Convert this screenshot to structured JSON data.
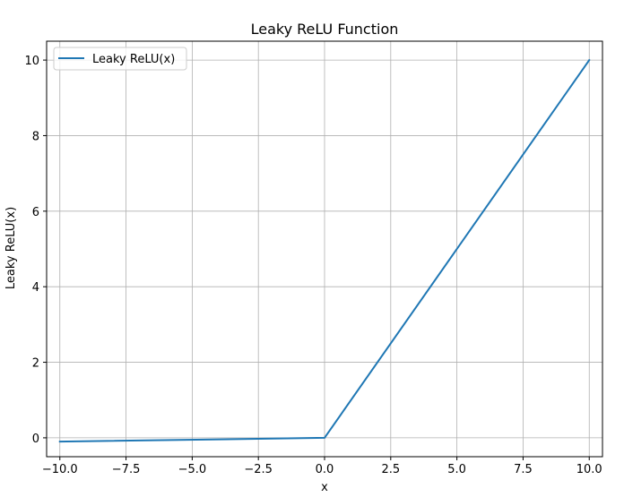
{
  "chart_data": {
    "type": "line",
    "title": "Leaky ReLU Function",
    "xlabel": "x",
    "ylabel": "Leaky ReLU(x)",
    "xlim": [
      -10.5,
      10.5
    ],
    "ylim": [
      -0.5,
      10.5
    ],
    "xticks": [
      -10.0,
      -7.5,
      -5.0,
      -2.5,
      0.0,
      2.5,
      5.0,
      7.5,
      10.0
    ],
    "xtick_labels": [
      "−10.0",
      "−7.5",
      "−5.0",
      "−2.5",
      "0.0",
      "2.5",
      "5.0",
      "7.5",
      "10.0"
    ],
    "yticks": [
      0,
      2,
      4,
      6,
      8,
      10
    ],
    "ytick_labels": [
      "0",
      "2",
      "4",
      "6",
      "8",
      "10"
    ],
    "grid": true,
    "legend_position": "top-left",
    "series": [
      {
        "name": "Leaky ReLU(x)",
        "color": "#1f77b4",
        "x": [
          -10,
          0,
          10
        ],
        "y": [
          -0.1,
          0,
          10
        ]
      }
    ]
  }
}
